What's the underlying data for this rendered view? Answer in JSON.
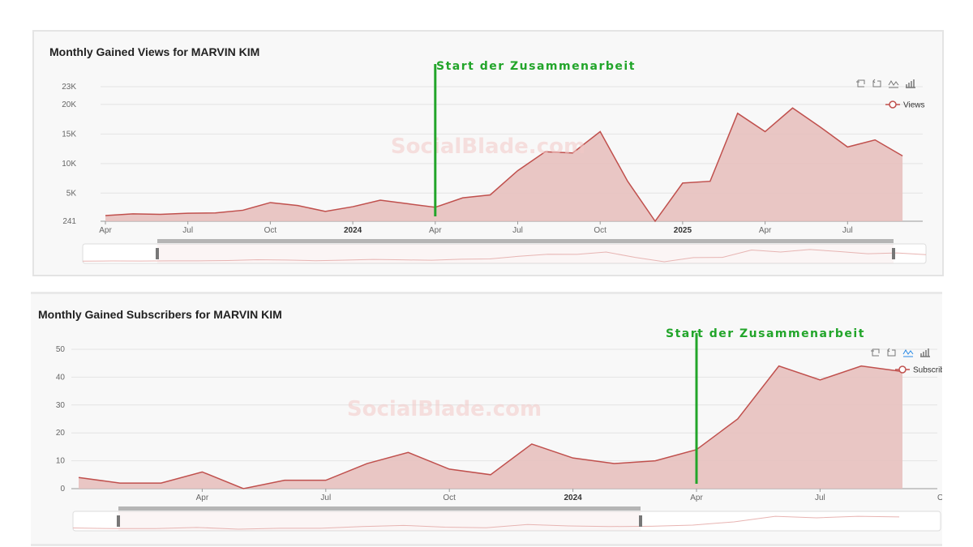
{
  "charts": [
    {
      "title": "Monthly Gained Views for MARVIN KIM",
      "annotation": "Start der Zusammenarbeit",
      "watermark": "SocialBlade.com",
      "legend": "Views",
      "toolbar_icons": [
        "zoom-icon",
        "zoom-reset-icon",
        "line-chart-icon",
        "bar-chart-icon"
      ],
      "colors": {
        "line": "#c0504d",
        "fill": "#e6bdbb",
        "annotation": "#22a52a"
      }
    },
    {
      "title": "Monthly Gained Subscribers for MARVIN KIM",
      "annotation": "Start der Zusammenarbeit",
      "watermark": "SocialBlade.com",
      "legend": "Subscribers",
      "toolbar_icons": [
        "zoom-icon",
        "zoom-reset-icon",
        "line-chart-icon",
        "bar-chart-icon"
      ],
      "colors": {
        "line": "#c0504d",
        "fill": "#e6bdbb",
        "annotation": "#22a52a"
      }
    }
  ],
  "chart_data": [
    {
      "type": "area",
      "title": "Monthly Gained Views for MARVIN KIM",
      "series_name": "Views",
      "x": [
        "2023-04",
        "2023-05",
        "2023-06",
        "2023-07",
        "2023-08",
        "2023-09",
        "2023-10",
        "2023-11",
        "2023-12",
        "2024-01",
        "2024-02",
        "2024-03",
        "2024-04",
        "2024-05",
        "2024-06",
        "2024-07",
        "2024-08",
        "2024-09",
        "2024-10",
        "2024-11",
        "2024-12",
        "2025-01",
        "2025-02",
        "2025-03",
        "2025-04",
        "2025-05",
        "2025-06",
        "2025-07",
        "2025-08",
        "2025-09"
      ],
      "values": [
        1200,
        1500,
        1400,
        1600,
        1650,
        2100,
        3400,
        2900,
        1900,
        2700,
        3800,
        3200,
        2600,
        4200,
        4700,
        8800,
        12000,
        11800,
        15400,
        7000,
        241,
        6700,
        7000,
        18500,
        15400,
        19400,
        16200,
        12800,
        14000,
        11300
      ],
      "x_tick_labels": [
        "Apr",
        "Jul",
        "Oct",
        "2024",
        "Apr",
        "Jul",
        "Oct",
        "2025",
        "Apr",
        "Jul"
      ],
      "y_tick_labels": [
        "241",
        "5K",
        "10K",
        "15K",
        "20K",
        "23K"
      ],
      "ylim": [
        241,
        23000
      ],
      "annotation": {
        "text": "Start der Zusammenarbeit",
        "x": "2024-04"
      },
      "grid": true,
      "legend_position": "top-right"
    },
    {
      "type": "area",
      "title": "Monthly Gained Subscribers for MARVIN KIM",
      "series_name": "Subscribers",
      "x": [
        "2023-01",
        "2023-02",
        "2023-03",
        "2023-04",
        "2023-05",
        "2023-06",
        "2023-07",
        "2023-08",
        "2023-09",
        "2023-10",
        "2023-11",
        "2023-12",
        "2024-01",
        "2024-02",
        "2024-03",
        "2024-04",
        "2024-05",
        "2024-06",
        "2024-07",
        "2024-08",
        "2024-09",
        "2024-10"
      ],
      "values": [
        4,
        2,
        2,
        6,
        0,
        3,
        3,
        9,
        13,
        7,
        5,
        16,
        11,
        9,
        10,
        14,
        25,
        44,
        39,
        44,
        42,
        null
      ],
      "x_tick_labels": [
        "Apr",
        "Jul",
        "Oct",
        "2024",
        "Apr",
        "Jul",
        "Oct"
      ],
      "y_tick_labels": [
        "0",
        "10",
        "20",
        "30",
        "40",
        "50"
      ],
      "ylim": [
        0,
        50
      ],
      "annotation": {
        "text": "Start der Zusammenarbeit",
        "x": "2024-04"
      },
      "grid": true,
      "legend_position": "top-right"
    }
  ]
}
